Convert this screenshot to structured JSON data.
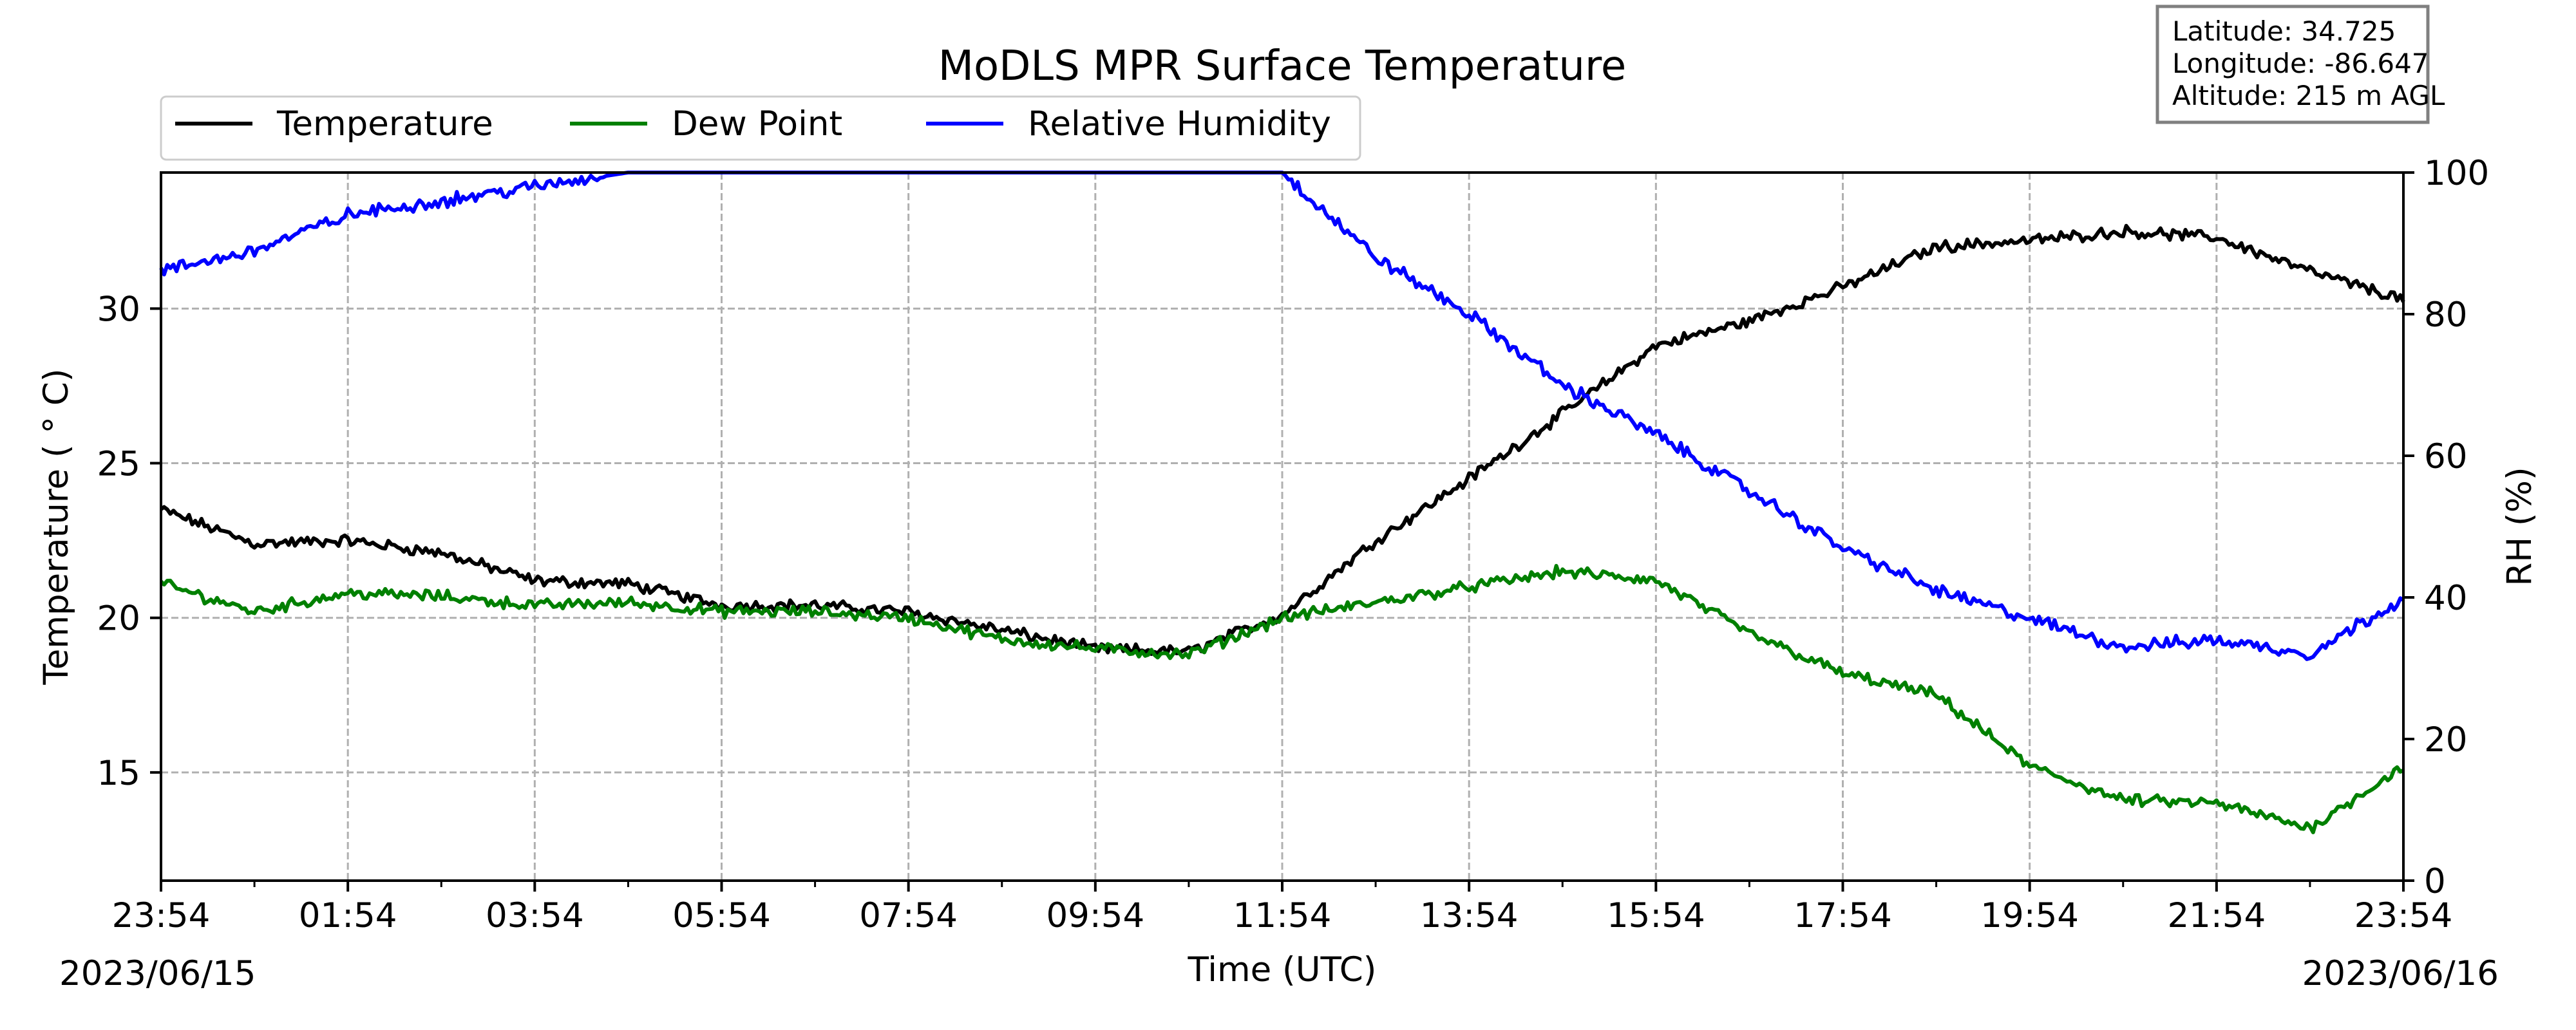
{
  "chart_data": {
    "type": "line",
    "title": "MoDLS MPR Surface Temperature",
    "xlabel": "Time (UTC)",
    "ylabel": "Temperature ($^\\circ$C)",
    "ylabel_display": "Temperature ( ° C)",
    "y2label": "RH (%)",
    "date_start": "2023/06/15",
    "date_end": "2023/06/16",
    "x_ticks": [
      "23:54",
      "01:54",
      "03:54",
      "05:54",
      "07:54",
      "09:54",
      "11:54",
      "13:54",
      "15:54",
      "17:54",
      "19:54",
      "21:54",
      "23:54"
    ],
    "ylim": [
      11.5,
      34.4
    ],
    "y_ticks": [
      "15",
      "20",
      "25",
      "30"
    ],
    "y2lim": [
      0,
      100
    ],
    "y2_ticks": [
      "0",
      "20",
      "40",
      "60",
      "80",
      "100"
    ],
    "grid": true,
    "legend_position": "top-left, above plot",
    "info_box": {
      "latitude": "Latitude: 34.725",
      "longitude": "Longitude: -86.647",
      "altitude": "Altitude: 215 m AGL"
    },
    "x_hours_after_start": [
      0,
      1,
      2,
      3,
      4,
      5,
      6,
      7,
      8,
      9,
      10,
      11,
      12,
      13,
      14,
      15,
      16,
      17,
      18,
      19,
      20,
      21,
      22,
      23,
      24
    ],
    "series": [
      {
        "name": "Temperature",
        "axis": "left",
        "color": "#000000",
        "values": [
          23.5,
          22.4,
          22.5,
          22.1,
          21.2,
          21.1,
          20.4,
          20.4,
          20.2,
          19.6,
          19.0,
          18.9,
          20.1,
          22.5,
          24.5,
          26.6,
          28.8,
          29.6,
          30.7,
          32.0,
          32.2,
          32.5,
          32.3,
          31.2,
          30.3
        ]
      },
      {
        "name": "Dew Point",
        "axis": "left",
        "color": "#008000",
        "values": [
          21.1,
          20.2,
          20.8,
          20.7,
          20.4,
          20.5,
          20.2,
          20.2,
          20.0,
          19.3,
          19.0,
          18.8,
          20.0,
          20.5,
          21.0,
          21.5,
          21.2,
          19.5,
          18.2,
          17.5,
          15.2,
          14.1,
          14.0,
          13.2,
          15.2
        ]
      },
      {
        "name": "Relative Humidity",
        "axis": "right",
        "color": "#0000ff",
        "values": [
          86,
          89,
          94,
          96,
          98,
          100,
          100,
          100,
          100,
          100,
          100,
          100,
          100,
          88,
          80,
          70,
          63,
          55,
          47,
          41,
          37,
          33,
          34,
          32,
          40
        ]
      }
    ]
  }
}
